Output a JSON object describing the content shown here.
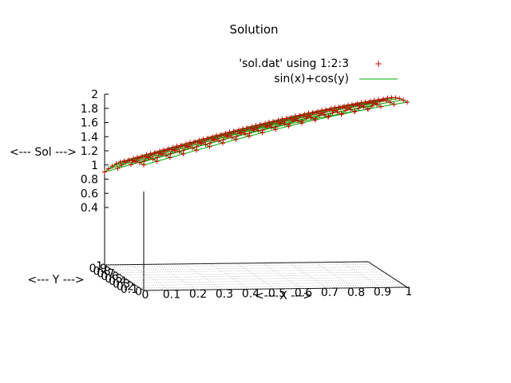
{
  "chart_data": {
    "type": "surface3d",
    "title": "Solution",
    "xlabel": "<--- X --->",
    "ylabel": "<--- Y --->",
    "zlabel": "<--- Sol --->",
    "x_ticks": [
      "0",
      "0.1",
      "0.2",
      "0.3",
      "0.4",
      "0.5",
      "0.6",
      "0.7",
      "0.8",
      "0.9",
      "1"
    ],
    "y_ticks": [
      "0",
      "0.1",
      "0.2",
      "0.3",
      "0.4",
      "0.5",
      "0.6",
      "0.7",
      "0.8",
      "0.9",
      "1"
    ],
    "z_ticks": [
      "0.4",
      "0.6",
      "0.8",
      "1",
      "1.2",
      "1.4",
      "1.6",
      "1.8",
      "2"
    ],
    "xlim": [
      0,
      1
    ],
    "ylim": [
      0,
      1
    ],
    "zlim": [
      0.4,
      2
    ],
    "grid": "base plane",
    "legend_position": "top-right",
    "series": [
      {
        "name": "'sol.dat' using 1:2:3",
        "style": "points",
        "marker": "+",
        "color": "#cc0000",
        "function": "sin(x)+cos(y)",
        "nx": 21,
        "ny": 11
      },
      {
        "name": "sin(x)+cos(y)",
        "style": "lines",
        "color": "#00aa00",
        "function": "sin(x)+cos(y)",
        "nx": 21,
        "ny": 11
      }
    ]
  }
}
